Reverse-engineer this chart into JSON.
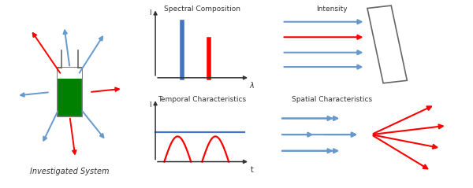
{
  "title_spectral": "Spectral Composition",
  "title_intensity": "Intensity",
  "title_temporal": "Temporal Characteristics",
  "title_spatial": "Spatial Characteristics",
  "label_investigated": "Investigated System",
  "blue": "#4472C4",
  "red": "#FF0000",
  "light_blue": "#6699CC",
  "green": "#008000",
  "dark": "#333333",
  "gray": "#666666",
  "background": "#FFFFFF"
}
